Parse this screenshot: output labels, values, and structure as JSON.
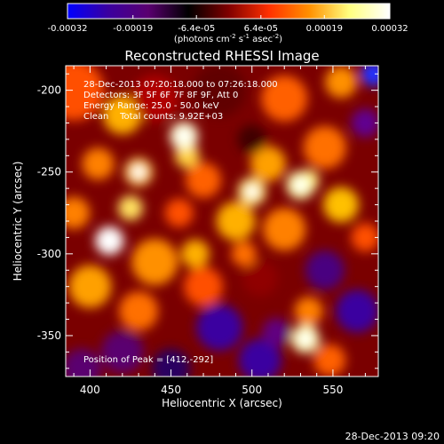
{
  "chart_data": {
    "type": "heatmap",
    "title": "Reconstructed RHESSI Image",
    "xlabel": "Heliocentric X (arcsec)",
    "ylabel": "Heliocentric Y (arcsec)",
    "xlim": [
      385,
      578
    ],
    "ylim": [
      -375,
      -185
    ],
    "x_ticks": [
      400,
      450,
      500,
      550
    ],
    "y_ticks": [
      -200,
      -250,
      -300,
      -350
    ],
    "colorbar": {
      "range": [
        -0.00032,
        0.00032
      ],
      "tick_values": [
        -0.00032,
        -0.00019,
        -6.4e-05,
        6.4e-05,
        0.00019,
        0.00032
      ],
      "tick_labels": [
        "-0.00032",
        "-0.00019",
        "-6.4e-05",
        "6.4e-05",
        "0.00019",
        "0.00032"
      ],
      "units_prefix": "(photons cm",
      "units_exp1": "-2",
      "units_mid": " s",
      "units_exp2": "-1",
      "units_mid2": " asec",
      "units_exp3": "-2",
      "units_suffix": ")"
    },
    "annotations": [
      "28-Dec-2013 07:20:18.000 to 07:26:18.000",
      "Detectors: 3F 5F 6F 7F 8F 9F, Att 0",
      "Energy Range: 25.0 - 50.0 keV",
      "Clean    Total counts: 9.92E+03"
    ],
    "peak_label": "Position of Peak = [412,-292]",
    "peak": [
      412,
      -292
    ],
    "bright_sources": [
      {
        "x": 412,
        "y": -292,
        "value": 0.00032
      },
      {
        "x": 458,
        "y": -228,
        "value": 0.00029
      },
      {
        "x": 530,
        "y": -258,
        "value": 0.00026
      },
      {
        "x": 533,
        "y": -352,
        "value": 0.00027
      },
      {
        "x": 500,
        "y": -262,
        "value": 0.00022
      },
      {
        "x": 430,
        "y": -250,
        "value": 0.0002
      }
    ],
    "grid": false
  },
  "footer_timestamp": "28-Dec-2013 09:20",
  "colors": {
    "background": "#000000",
    "text": "#ffffff",
    "colormap": [
      "#0000ff",
      "#3a00a0",
      "#5a0070",
      "#000000",
      "#800000",
      "#ff3000",
      "#ff9000",
      "#ffff80",
      "#ffffff"
    ]
  }
}
